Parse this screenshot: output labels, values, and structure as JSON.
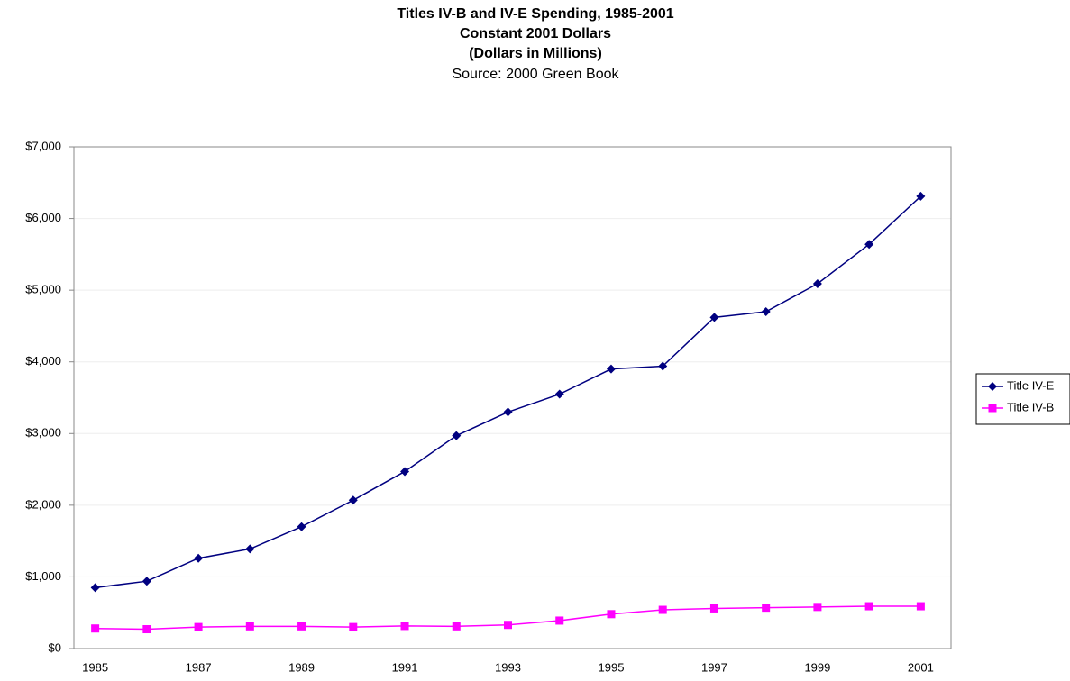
{
  "chart_data": {
    "type": "line",
    "title": [
      "Titles IV-B and IV-E Spending, 1985-2001",
      "Constant 2001 Dollars",
      "(Dollars in Millions)"
    ],
    "subtitle": "Source: 2000 Green Book",
    "categories": [
      "1985",
      null,
      "1987",
      null,
      "1989",
      null,
      "1991",
      null,
      "1993",
      null,
      "1995",
      null,
      "1997",
      null,
      "1999",
      null,
      "2001"
    ],
    "series": [
      {
        "name": "Title IV-E",
        "color": "#000080",
        "marker": "diamond",
        "values": [
          850,
          940,
          1260,
          1390,
          1700,
          2070,
          2470,
          2970,
          3300,
          3550,
          3900,
          3940,
          4620,
          4700,
          5090,
          5640,
          6310
        ]
      },
      {
        "name": "Title IV-B",
        "color": "#ff00ff",
        "marker": "square",
        "values": [
          280,
          270,
          300,
          310,
          310,
          300,
          315,
          310,
          330,
          390,
          480,
          540,
          560,
          570,
          580,
          590,
          590
        ]
      }
    ],
    "ylim": [
      0,
      7000
    ],
    "yticks": [
      {
        "value": 0,
        "label": "$0"
      },
      {
        "value": 1000,
        "label": "$1,000"
      },
      {
        "value": 2000,
        "label": "$2,000"
      },
      {
        "value": 3000,
        "label": "$3,000"
      },
      {
        "value": 4000,
        "label": "$4,000"
      },
      {
        "value": 5000,
        "label": "$5,000"
      },
      {
        "value": 6000,
        "label": "$6,000"
      },
      {
        "value": 7000,
        "label": "$7,000"
      }
    ],
    "grid": true,
    "legend": "right"
  }
}
